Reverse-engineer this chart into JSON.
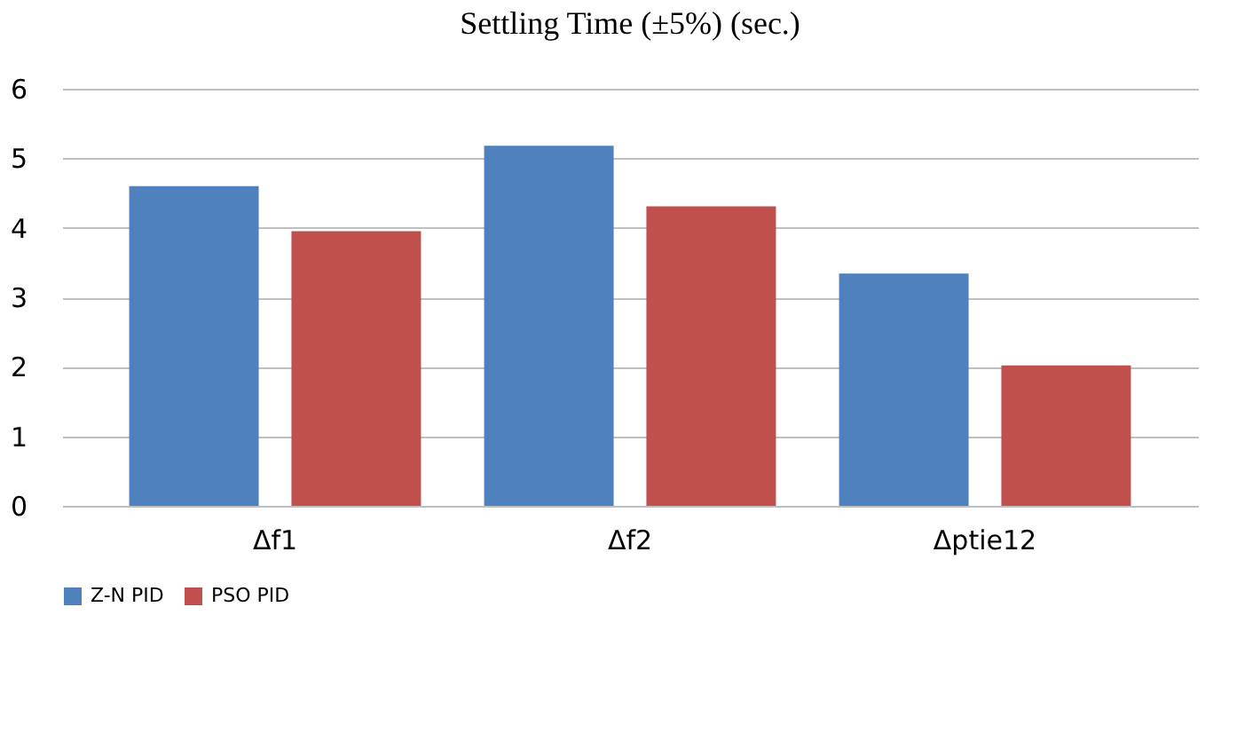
{
  "chart_data": {
    "type": "bar",
    "title": "Settling Time (±5%) (sec.)",
    "categories": [
      "Δf1",
      "Δf2",
      "Δptie12"
    ],
    "series": [
      {
        "name": "Z-N PID",
        "color": "#4f81bd",
        "values": [
          4.6,
          5.18,
          3.34
        ]
      },
      {
        "name": "PSO PID",
        "color": "#c0504d",
        "values": [
          3.95,
          4.31,
          2.02
        ]
      }
    ],
    "ylim": [
      0,
      6
    ],
    "yticks": [
      0,
      1,
      2,
      3,
      4,
      5,
      6
    ],
    "grid": "y",
    "legend": "bottom"
  }
}
